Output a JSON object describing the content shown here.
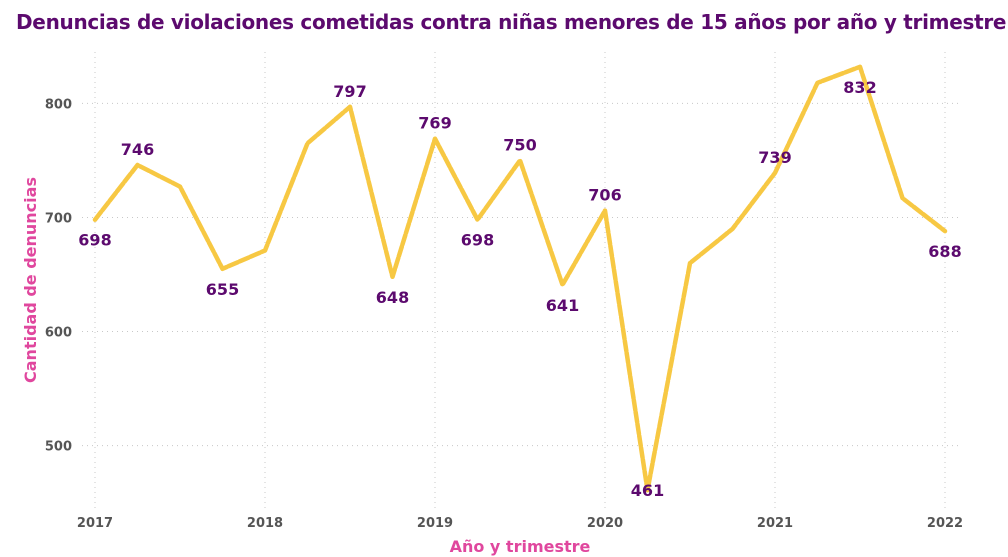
{
  "chart_data": {
    "type": "line",
    "title": "Denuncias de violaciones cometidas contra niñas menores de 15 años por año y trimestre",
    "xlabel": "Año y trimestre",
    "ylabel": "Cantidad de denuncias",
    "x_tick_labels": [
      "2017",
      "2018",
      "2019",
      "2020",
      "2021",
      "2022"
    ],
    "y_ticks": [
      500,
      600,
      700,
      800
    ],
    "ylim": [
      455,
      845
    ],
    "grid": true,
    "x": [
      "2017 T1",
      "2017 T2",
      "2017 T3",
      "2017 T4",
      "2018 T1",
      "2018 T2",
      "2018 T3",
      "2018 T4",
      "2019 T1",
      "2019 T2",
      "2019 T3",
      "2019 T4",
      "2020 T1",
      "2020 T2",
      "2020 T3",
      "2020 T4",
      "2021 T1",
      "2021 T2",
      "2021 T3",
      "2021 T4",
      "2022 T1"
    ],
    "series": [
      {
        "values": [
          698,
          746,
          727,
          655,
          671,
          765,
          797,
          648,
          769,
          698,
          750,
          641,
          706,
          461,
          660,
          690,
          739,
          818,
          832,
          717,
          688
        ]
      }
    ],
    "labeled_points": [
      {
        "index": 0,
        "value": "698",
        "position": "below"
      },
      {
        "index": 1,
        "value": "746",
        "position": "above"
      },
      {
        "index": 3,
        "value": "655",
        "position": "below"
      },
      {
        "index": 6,
        "value": "797",
        "position": "above"
      },
      {
        "index": 7,
        "value": "648",
        "position": "below"
      },
      {
        "index": 8,
        "value": "769",
        "position": "above"
      },
      {
        "index": 9,
        "value": "698",
        "position": "below"
      },
      {
        "index": 10,
        "value": "750",
        "position": "above"
      },
      {
        "index": 11,
        "value": "641",
        "position": "below"
      },
      {
        "index": 12,
        "value": "706",
        "position": "above"
      },
      {
        "index": 13,
        "value": "461",
        "position": "center"
      },
      {
        "index": 16,
        "value": "739",
        "position": "above"
      },
      {
        "index": 18,
        "value": "832",
        "position": "below"
      },
      {
        "index": 20,
        "value": "688",
        "position": "below"
      }
    ],
    "line_color": "#f7c843",
    "label_color": "#5c0a6e",
    "axis_title_color": "#e0479e",
    "title_color": "#5c0a6e"
  }
}
